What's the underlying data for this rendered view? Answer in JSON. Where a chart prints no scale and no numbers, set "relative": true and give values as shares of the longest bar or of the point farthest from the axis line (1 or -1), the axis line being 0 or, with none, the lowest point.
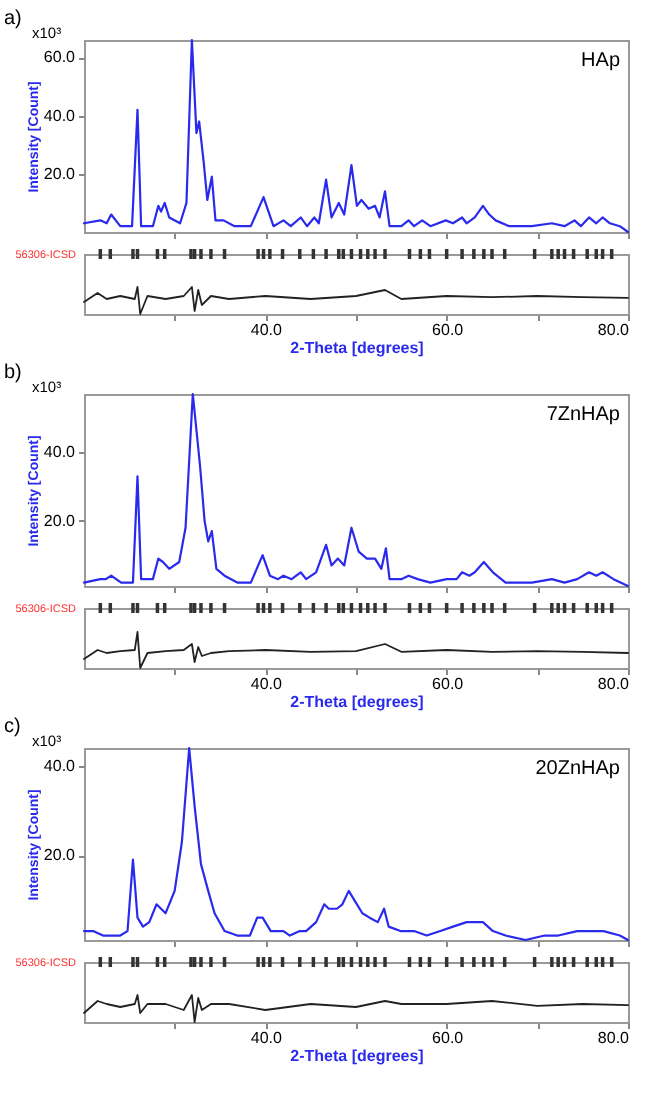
{
  "chart_data": [
    {
      "type": "line",
      "title": "a)",
      "ylabel": "Intensity [Count]",
      "annotations": [
        "HAp",
        "x10³"
      ],
      "xlim": [
        20,
        80
      ],
      "xticks": [
        30,
        40,
        50,
        60,
        70,
        80
      ],
      "ylim": [
        0,
        66
      ],
      "yticks": [
        {
          "value": 20,
          "label": "20.0"
        },
        {
          "value": 40,
          "label": "40.0"
        },
        {
          "value": 60,
          "label": "60.0"
        }
      ],
      "tick_labels": "y",
      "x": [
        20,
        21.8,
        22.5,
        23,
        24,
        25.3,
        25.9,
        26.3,
        27.6,
        28.2,
        28.5,
        28.9,
        29.4,
        30.6,
        31.3,
        31.9,
        32.4,
        32.7,
        33.2,
        33.6,
        34.1,
        34.5,
        35.4,
        36.6,
        38.4,
        39.8,
        40.9,
        42,
        42.8,
        43.9,
        44.6,
        45.4,
        45.9,
        46.7,
        47.3,
        48.1,
        48.7,
        49.5,
        50.1,
        50.6,
        51.4,
        52.1,
        52.6,
        53.2,
        53.7,
        55,
        55.8,
        56.4,
        57.3,
        58.2,
        59.9,
        60.7,
        61.7,
        62.2,
        63.1,
        64,
        64.7,
        65.4,
        66.9,
        69.4,
        71.6,
        73,
        74.1,
        74.8,
        75.7,
        76.5,
        77.2,
        78,
        79.1,
        80
      ],
      "series": [
        {
          "color": "#2a2aee",
          "values": [
            3,
            4,
            3,
            6,
            2,
            2,
            42,
            2,
            2,
            9,
            7,
            10,
            5,
            3,
            10,
            66,
            34,
            38,
            24,
            11,
            19,
            4,
            4,
            2,
            2,
            12,
            2,
            4,
            2,
            5,
            2,
            5,
            3,
            18,
            5,
            10,
            6,
            23,
            9,
            11,
            8,
            9,
            5,
            14,
            2,
            2,
            4,
            2,
            4,
            2,
            4,
            3,
            5,
            3,
            5,
            9,
            6,
            4,
            2,
            2,
            3,
            2,
            4,
            2,
            5,
            3,
            5,
            3,
            2,
            0
          ]
        }
      ]
    },
    {
      "type": "line",
      "relative": true,
      "xlabel": "2-Theta [degrees]",
      "xlim": [
        20,
        80
      ],
      "xticks": [
        {
          "value": 30,
          "label": null
        },
        {
          "value": 40,
          "label": "40.0"
        },
        {
          "value": 50,
          "label": null
        },
        {
          "value": 60,
          "label": "60.0"
        },
        {
          "value": 70,
          "label": null
        },
        {
          "value": 80,
          "label": "80.0"
        }
      ],
      "tick_labels": "x",
      "x": [
        20,
        21.5,
        22.5,
        24,
        25.6,
        25.9,
        26.2,
        27,
        29,
        31,
        31.9,
        32.2,
        32.6,
        33,
        34,
        36,
        40,
        45,
        50,
        53.2,
        55,
        60,
        65,
        70,
        75,
        80
      ],
      "series": [
        {
          "color": "#222222",
          "values": [
            0.2,
            0.35,
            0.25,
            0.3,
            0.25,
            0.45,
            0,
            0.3,
            0.25,
            0.3,
            0.45,
            0.05,
            0.4,
            0.15,
            0.3,
            0.25,
            0.3,
            0.25,
            0.3,
            0.4,
            0.25,
            0.3,
            0.28,
            0.3,
            0.28,
            0.27
          ]
        },
        {
          "type": "scatter",
          "name": "56306-ICSD",
          "color": "#333333",
          "x": [
            21.8,
            22.9,
            25.4,
            25.9,
            28.1,
            28.9,
            31.8,
            32.2,
            32.9,
            34.0,
            35.5,
            39.2,
            39.8,
            40.5,
            41.9,
            43.8,
            45.3,
            46.7,
            48.1,
            48.6,
            49.5,
            50.5,
            51.3,
            52.1,
            53.2,
            55.9,
            57.1,
            58.1,
            60.0,
            61.7,
            63.0,
            64.1,
            65.0,
            66.4,
            69.7,
            71.6,
            72.3,
            73.0,
            74.0,
            75.5,
            76.5,
            77.2,
            78.2
          ],
          "values": [
            1,
            1,
            1,
            1,
            1,
            1,
            1,
            1,
            1,
            1,
            1,
            1,
            1,
            1,
            1,
            1,
            1,
            1,
            1,
            1,
            1,
            1,
            1,
            1,
            1,
            1,
            1,
            1,
            1,
            1,
            1,
            1,
            1,
            1,
            1,
            1,
            1,
            1,
            1,
            1,
            1,
            1,
            1
          ]
        }
      ]
    },
    {
      "type": "line",
      "title": "b)",
      "ylabel": "Intensity [Count]",
      "annotations": [
        "7ZnHAp",
        "x10³"
      ],
      "xlim": [
        20,
        80
      ],
      "xticks": [
        30,
        40,
        50,
        60,
        70,
        80
      ],
      "ylim": [
        1,
        57
      ],
      "yticks": [
        {
          "value": 20,
          "label": "20.0"
        },
        {
          "value": 40,
          "label": "40.0"
        }
      ],
      "tick_labels": "y",
      "x": [
        20,
        21.8,
        22.4,
        23,
        24.1,
        25.4,
        25.9,
        26.3,
        27.6,
        28.2,
        28.7,
        29.4,
        30.5,
        31.2,
        32,
        32.8,
        33.3,
        33.7,
        34.1,
        34.6,
        35.5,
        36.9,
        38.4,
        39.7,
        40.5,
        41.4,
        42,
        42.9,
        43.9,
        44.5,
        45.6,
        46.7,
        47.3,
        48,
        48.7,
        49.5,
        50.3,
        51.2,
        52.1,
        52.8,
        53.3,
        53.7,
        55,
        55.8,
        56.8,
        58.2,
        60,
        61.1,
        61.7,
        62.5,
        63.1,
        64.1,
        65.1,
        66.5,
        69.4,
        71.6,
        73,
        74.4,
        75.7,
        76.5,
        77.2,
        78.4,
        80
      ],
      "series": [
        {
          "color": "#2a2aee",
          "values": [
            2,
            3,
            3,
            4,
            2,
            2,
            33,
            3,
            3,
            9,
            8,
            6,
            8,
            18,
            57,
            36,
            20,
            14,
            17,
            6,
            4,
            2,
            2,
            10,
            4,
            3,
            4,
            3,
            5,
            3,
            5,
            13,
            7,
            9,
            7,
            18,
            11,
            9,
            9,
            6,
            12,
            3,
            3,
            4,
            3,
            2,
            3,
            3,
            5,
            4,
            5,
            8,
            5,
            2,
            2,
            3,
            2,
            3,
            5,
            4,
            5,
            3,
            1
          ]
        }
      ]
    },
    {
      "type": "line",
      "relative": true,
      "xlabel": "2-Theta [degrees]",
      "xlim": [
        20,
        80
      ],
      "xticks": [
        {
          "value": 30,
          "label": null
        },
        {
          "value": 40,
          "label": "40.0"
        },
        {
          "value": 50,
          "label": null
        },
        {
          "value": 60,
          "label": "60.0"
        },
        {
          "value": 70,
          "label": null
        },
        {
          "value": 80,
          "label": "80.0"
        }
      ],
      "tick_labels": "x",
      "x": [
        20,
        21.5,
        22.5,
        24,
        25.6,
        25.9,
        26.2,
        27,
        29,
        31,
        31.9,
        32.2,
        32.6,
        33,
        34,
        36,
        40,
        45,
        50,
        53.2,
        55,
        60,
        65,
        70,
        75,
        80
      ],
      "series": [
        {
          "color": "#222222",
          "values": [
            0.15,
            0.3,
            0.25,
            0.28,
            0.3,
            0.6,
            0,
            0.25,
            0.28,
            0.3,
            0.4,
            0.1,
            0.35,
            0.2,
            0.25,
            0.28,
            0.3,
            0.27,
            0.28,
            0.4,
            0.27,
            0.3,
            0.27,
            0.28,
            0.27,
            0.25
          ]
        },
        {
          "type": "scatter",
          "name": "56306-ICSD",
          "color": "#333333",
          "x": [
            21.8,
            22.9,
            25.4,
            25.9,
            28.1,
            28.9,
            31.8,
            32.2,
            32.9,
            34.0,
            35.5,
            39.2,
            39.8,
            40.5,
            41.9,
            43.8,
            45.3,
            46.7,
            48.1,
            48.6,
            49.5,
            50.5,
            51.3,
            52.1,
            53.2,
            55.9,
            57.1,
            58.1,
            60.0,
            61.7,
            63.0,
            64.1,
            65.0,
            66.4,
            69.7,
            71.6,
            72.3,
            73.0,
            74.0,
            75.5,
            76.5,
            77.2,
            78.2
          ],
          "values": [
            1,
            1,
            1,
            1,
            1,
            1,
            1,
            1,
            1,
            1,
            1,
            1,
            1,
            1,
            1,
            1,
            1,
            1,
            1,
            1,
            1,
            1,
            1,
            1,
            1,
            1,
            1,
            1,
            1,
            1,
            1,
            1,
            1,
            1,
            1,
            1,
            1,
            1,
            1,
            1,
            1,
            1,
            1
          ]
        }
      ]
    },
    {
      "type": "line",
      "title": "c)",
      "ylabel": "Intensity [Count]",
      "annotations": [
        "20ZnHAp",
        "x10³"
      ],
      "xlim": [
        20,
        80
      ],
      "xticks": [
        30,
        40,
        50,
        60,
        70,
        80
      ],
      "ylim": [
        1,
        44
      ],
      "yticks": [
        {
          "value": 20,
          "label": "20.0"
        },
        {
          "value": 40,
          "label": "40.0"
        }
      ],
      "tick_labels": "y",
      "x": [
        20,
        21,
        22.1,
        23.2,
        24,
        24.8,
        25.4,
        25.9,
        26.5,
        27.2,
        28,
        29,
        30,
        30.8,
        31.6,
        32.2,
        32.9,
        33.7,
        34.4,
        35.5,
        36.9,
        38.3,
        39.1,
        39.7,
        40.6,
        42,
        42.7,
        43.8,
        44.5,
        45.6,
        46.5,
        47,
        47.9,
        48.5,
        49.2,
        49.8,
        50.7,
        51.5,
        52.4,
        53.1,
        53.6,
        54.9,
        56.4,
        57.8,
        59.3,
        60.7,
        62.2,
        63,
        64,
        65.1,
        66.5,
        68.7,
        70.8,
        72.3,
        74.4,
        76,
        77.3,
        79.1,
        80
      ],
      "series": [
        {
          "color": "#2a2aee",
          "values": [
            3,
            3,
            2,
            2,
            2,
            3,
            19,
            6,
            4,
            5,
            9,
            7,
            12,
            23,
            44,
            31,
            18,
            12,
            7,
            3,
            2,
            2,
            6,
            6,
            3,
            3,
            2,
            3,
            3,
            5,
            9,
            8,
            8,
            9,
            12,
            10,
            7,
            6,
            5,
            8,
            4,
            3,
            3,
            2,
            3,
            4,
            5,
            5,
            5,
            3,
            2,
            1,
            2,
            2,
            3,
            3,
            3,
            2,
            1
          ]
        }
      ]
    },
    {
      "type": "line",
      "relative": true,
      "xlabel": "2-Theta [degrees]",
      "xlim": [
        20,
        80
      ],
      "xticks": [
        {
          "value": 30,
          "label": null
        },
        {
          "value": 40,
          "label": "40.0"
        },
        {
          "value": 50,
          "label": null
        },
        {
          "value": 60,
          "label": "60.0"
        },
        {
          "value": 70,
          "label": null
        },
        {
          "value": 80,
          "label": "80.0"
        }
      ],
      "tick_labels": "x",
      "x": [
        20,
        21.5,
        22.5,
        24,
        25.6,
        25.9,
        26.2,
        27,
        29,
        31,
        31.9,
        32.2,
        32.6,
        33,
        34,
        36,
        40,
        45,
        50,
        53.2,
        55,
        60,
        65,
        70,
        75,
        80
      ],
      "series": [
        {
          "color": "#222222",
          "values": [
            0.15,
            0.35,
            0.3,
            0.25,
            0.3,
            0.45,
            0.15,
            0.3,
            0.3,
            0.2,
            0.45,
            0,
            0.4,
            0.2,
            0.3,
            0.3,
            0.2,
            0.3,
            0.25,
            0.35,
            0.3,
            0.3,
            0.35,
            0.27,
            0.3,
            0.28
          ]
        },
        {
          "type": "scatter",
          "name": "56306-ICSD",
          "color": "#333333",
          "x": [
            21.8,
            22.9,
            25.4,
            25.9,
            28.1,
            28.9,
            31.8,
            32.2,
            32.9,
            34.0,
            35.5,
            39.2,
            39.8,
            40.5,
            41.9,
            43.8,
            45.3,
            46.7,
            48.1,
            48.6,
            49.5,
            50.5,
            51.3,
            52.1,
            53.2,
            55.9,
            57.1,
            58.1,
            60.0,
            61.7,
            63.0,
            64.1,
            65.0,
            66.4,
            69.7,
            71.6,
            72.3,
            73.0,
            74.0,
            75.5,
            76.5,
            77.2,
            78.2
          ],
          "values": [
            1,
            1,
            1,
            1,
            1,
            1,
            1,
            1,
            1,
            1,
            1,
            1,
            1,
            1,
            1,
            1,
            1,
            1,
            1,
            1,
            1,
            1,
            1,
            1,
            1,
            1,
            1,
            1,
            1,
            1,
            1,
            1,
            1,
            1,
            1,
            1,
            1,
            1,
            1,
            1,
            1,
            1,
            1
          ]
        }
      ]
    }
  ]
}
